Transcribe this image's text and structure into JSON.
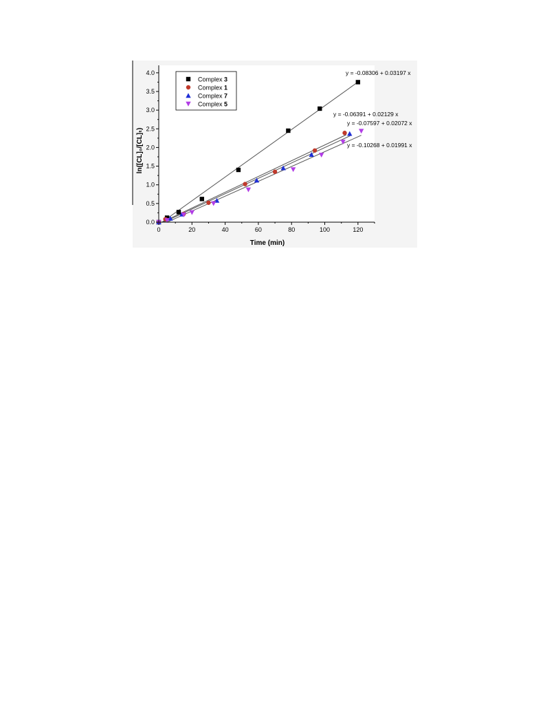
{
  "chart_data": {
    "type": "scatter",
    "xlabel": "Time (min)",
    "ylabel": "ln([CL]₀/[CL]ₜ)",
    "xlim": [
      0,
      130
    ],
    "ylim": [
      0,
      4.2
    ],
    "x_ticks": [
      0,
      20,
      40,
      60,
      80,
      100,
      120
    ],
    "y_ticks": [
      0.0,
      0.5,
      1.0,
      1.5,
      2.0,
      2.5,
      3.0,
      3.5,
      4.0
    ],
    "x_tick_labels": [
      "0",
      "20",
      "40",
      "60",
      "80",
      "100",
      "120"
    ],
    "y_tick_labels": [
      "0.0",
      "0.5",
      "1.0",
      "1.5",
      "2.0",
      "2.5",
      "3.0",
      "3.5",
      "4.0"
    ],
    "legend_position": "top-left",
    "grid": false,
    "series": [
      {
        "name": "Complex 3",
        "name_prefix": "Complex ",
        "name_bold": "3",
        "marker": "square",
        "color": "#000000",
        "points": [
          [
            0,
            0.0
          ],
          [
            5,
            0.12
          ],
          [
            12,
            0.27
          ],
          [
            26,
            0.62
          ],
          [
            48,
            1.4
          ],
          [
            78,
            2.45
          ],
          [
            97,
            3.04
          ],
          [
            120,
            3.75
          ]
        ],
        "fit": {
          "intercept": -0.08306,
          "slope": 0.03197,
          "x_range": [
            2,
            121
          ],
          "label": "y = -0.08306 + 0.03197 x"
        }
      },
      {
        "name": "Complex 1",
        "name_prefix": "Complex ",
        "name_bold": "1",
        "marker": "circle",
        "color": "#c0392b",
        "points": [
          [
            0,
            0.0
          ],
          [
            4,
            0.08
          ],
          [
            15,
            0.22
          ],
          [
            30,
            0.52
          ],
          [
            52,
            1.02
          ],
          [
            70,
            1.35
          ],
          [
            94,
            1.92
          ],
          [
            112,
            2.39
          ]
        ],
        "fit": {
          "intercept": -0.06391,
          "slope": 0.02129,
          "x_range": [
            2,
            113
          ],
          "label": "y = -0.06391 + 0.02129 x"
        }
      },
      {
        "name": "Complex 7",
        "name_prefix": "Complex ",
        "name_bold": "7",
        "marker": "triangle-up",
        "color": "#1f2fd6",
        "points": [
          [
            0,
            0.0
          ],
          [
            7,
            0.1
          ],
          [
            14,
            0.21
          ],
          [
            35,
            0.58
          ],
          [
            59,
            1.12
          ],
          [
            75,
            1.45
          ],
          [
            92,
            1.81
          ],
          [
            115,
            2.37
          ]
        ],
        "fit": {
          "intercept": -0.07597,
          "slope": 0.02072,
          "x_range": [
            3,
            116
          ],
          "label": "y = -0.07597 + 0.02072 x"
        }
      },
      {
        "name": "Complex 5",
        "name_prefix": "Complex ",
        "name_bold": "5",
        "marker": "triangle-down",
        "color": "#b23ee6",
        "points": [
          [
            0,
            0.0
          ],
          [
            5,
            0.05
          ],
          [
            15,
            0.2
          ],
          [
            20,
            0.26
          ],
          [
            33,
            0.5
          ],
          [
            54,
            0.87
          ],
          [
            81,
            1.41
          ],
          [
            98,
            1.8
          ],
          [
            111,
            2.15
          ],
          [
            122,
            2.44
          ]
        ],
        "fit": {
          "intercept": -0.10268,
          "slope": 0.01991,
          "x_range": [
            5,
            122
          ],
          "label": "y = -0.10268 + 0.01991 x"
        }
      }
    ]
  }
}
